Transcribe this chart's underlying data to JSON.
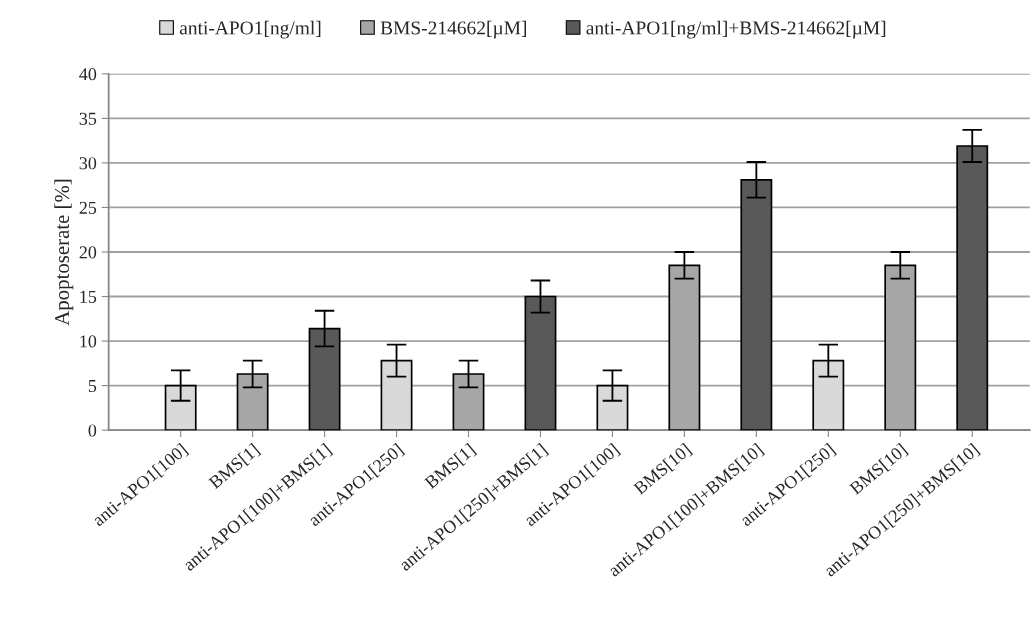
{
  "chart_data": {
    "type": "bar",
    "ylabel": "Apoptoserate [%]",
    "categories": [
      "anti-APO1[100]",
      "BMS[1]",
      "anti-APO1[100]+BMS[1]",
      "anti-APO1[250]",
      "BMS[1]",
      "anti-APO1[250]+BMS[1]",
      "anti-APO1[100]",
      "BMS[10]",
      "anti-APO1[100]+BMS[10]",
      "anti-APO1[250]",
      "BMS[10]",
      "anti-APO1[250]+BMS[10]"
    ],
    "series": [
      {
        "name": "anti-APO1[ng/ml]",
        "color": "#d9d9d9",
        "values": [
          5,
          null,
          null,
          7.8,
          null,
          null,
          5,
          null,
          null,
          7.8,
          null,
          null
        ],
        "errors": [
          1.7,
          null,
          null,
          1.8,
          null,
          null,
          1.7,
          null,
          null,
          1.8,
          null,
          null
        ]
      },
      {
        "name": "BMS-214662[µM]",
        "color": "#a6a6a6",
        "values": [
          null,
          6.3,
          null,
          null,
          6.3,
          null,
          null,
          18.5,
          null,
          null,
          18.5,
          null
        ],
        "errors": [
          null,
          1.5,
          null,
          null,
          1.5,
          null,
          null,
          1.5,
          null,
          null,
          1.5,
          null
        ]
      },
      {
        "name": "anti-APO1[ng/ml]+BMS-214662[µM]",
        "color": "#595959",
        "values": [
          null,
          null,
          11.4,
          null,
          null,
          15,
          null,
          null,
          28.1,
          null,
          null,
          31.9
        ],
        "errors": [
          null,
          null,
          2.0,
          null,
          null,
          1.8,
          null,
          null,
          2.0,
          null,
          null,
          1.8
        ]
      }
    ],
    "ylim": [
      0,
      40
    ],
    "yticks": [
      0,
      5,
      10,
      15,
      20,
      25,
      30,
      35,
      40
    ],
    "grid": "y",
    "legend": "top"
  }
}
